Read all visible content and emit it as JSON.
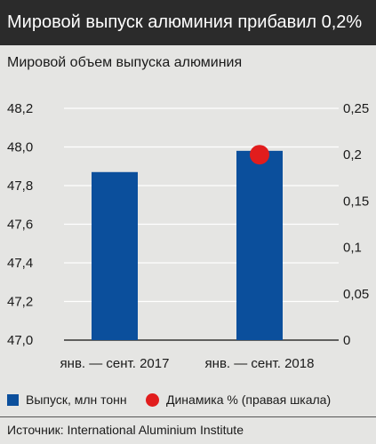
{
  "header": {
    "title": "Мировой выпуск алюминия прибавил 0,2%"
  },
  "chart_data": {
    "type": "bar",
    "title": "Мировой объем выпуска алюминия",
    "categories": [
      "янв. — сент. 2017",
      "янв. — сент. 2018"
    ],
    "series": [
      {
        "name": "Выпуск, млн тонн",
        "type": "bar",
        "axis": "left",
        "values": [
          47.87,
          47.98
        ],
        "color": "#0b4f9c"
      },
      {
        "name": "Динамика % (правая шкала)",
        "type": "scatter",
        "axis": "right",
        "values": [
          null,
          0.2
        ],
        "color": "#e11d1d"
      }
    ],
    "ylim_left": [
      47.0,
      48.2
    ],
    "ylim_right": [
      0,
      0.25
    ],
    "yticks_left": [
      "47,0",
      "47,2",
      "47,4",
      "47,6",
      "47,8",
      "48,0",
      "48,2"
    ],
    "yticks_right": [
      "0",
      "0,05",
      "0,1",
      "0,15",
      "0,2",
      "0,25"
    ],
    "grid": true,
    "legend_position": "bottom"
  },
  "legend": {
    "bar_label": "Выпуск, млн тонн",
    "dot_label": "Динамика % (правая шкала)"
  },
  "source": "Источник: International Aluminium Institute"
}
